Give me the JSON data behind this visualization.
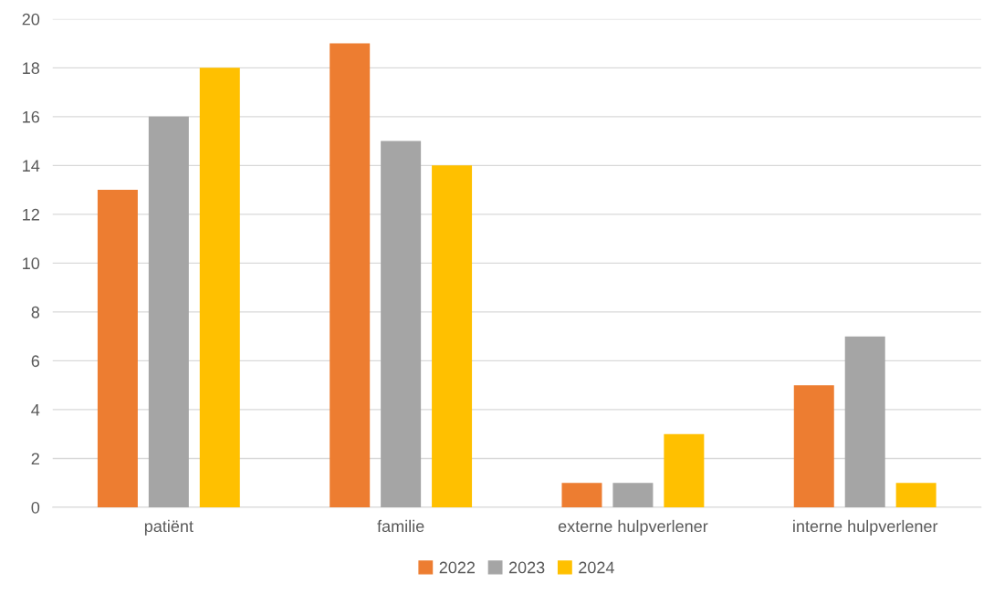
{
  "chart_data": {
    "type": "bar",
    "categories": [
      "patiënt",
      "familie",
      "externe hulpverlener",
      "interne hulpverlener"
    ],
    "series": [
      {
        "name": "2022",
        "color": "#ed7d31",
        "values": [
          13,
          19,
          1,
          5
        ]
      },
      {
        "name": "2023",
        "color": "#a5a5a5",
        "values": [
          16,
          15,
          1,
          7
        ]
      },
      {
        "name": "2024",
        "color": "#ffc000",
        "values": [
          18,
          14,
          3,
          1
        ]
      }
    ],
    "ylim": [
      0,
      20
    ],
    "yticks": [
      0,
      2,
      4,
      6,
      8,
      10,
      12,
      14,
      16,
      18,
      20
    ],
    "grid": "y",
    "legend": "bottom"
  }
}
